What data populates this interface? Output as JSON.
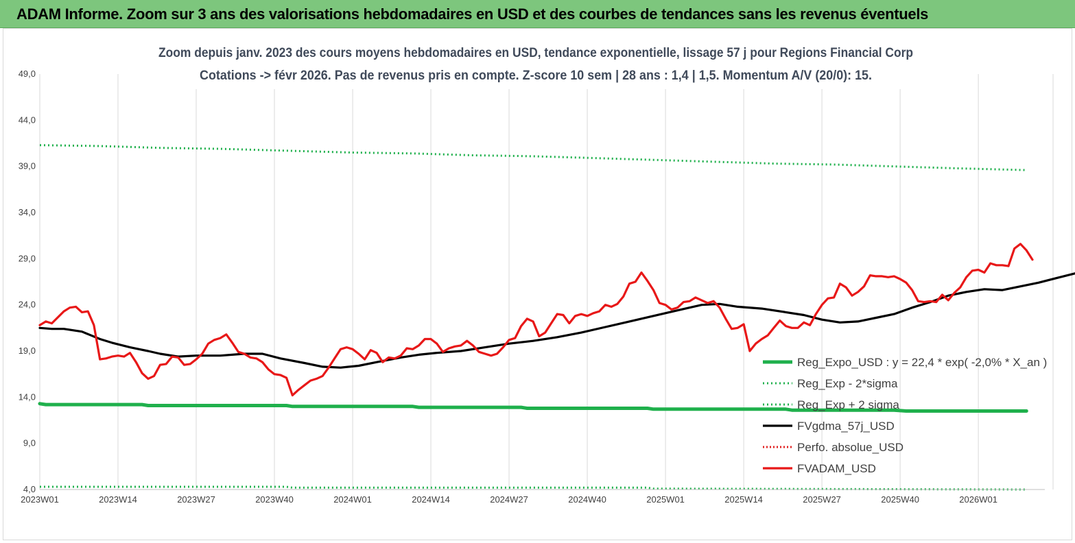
{
  "banner": {
    "title": "ADAM Informe. Zoom sur 3 ans des valorisations hebdomadaires en USD et des courbes de tendances sans les revenus éventuels"
  },
  "colors": {
    "banner_bg": "#7dc67d",
    "reg_expo": "#1fb04c",
    "band": "#1fb04c",
    "fvgdma": "#000000",
    "perfo": "#e02020",
    "fvadam": "#e81818"
  },
  "chart_data": {
    "type": "line",
    "title": "Zoom depuis janv. 2023 des cours moyens hebdomadaires en USD, tendance exponentielle, lissage 57 j pour Regions Financial Corp",
    "subtitle": "Cotations -> févr 2026.  Pas de revenus pris en compte. Z-score 10 sem  | 28 ans : 1,4  | 1,5. Momentum A/V (20/0): 15.",
    "xlabel": "",
    "ylabel": "",
    "ylim": [
      4,
      49
    ],
    "y_ticks": [
      "4,0",
      "9,0",
      "14,0",
      "19,0",
      "24,0",
      "29,0",
      "34,0",
      "39,0",
      "44,0",
      "49,0"
    ],
    "x_ticks": [
      "2023W01",
      "2023W14",
      "2023W27",
      "2023W40",
      "2024W01",
      "2024W14",
      "2024W27",
      "2024W40",
      "2025W01",
      "2025W14",
      "2025W27",
      "2025W40",
      "2026W01"
    ],
    "grid": "vertical",
    "legend_position": "bottom-right",
    "weeks_count": 165,
    "series": [
      {
        "name": "Reg_Expo_USD : y = 22,4 * exp( -2,0% *  X_an )",
        "style": "solid-thick",
        "points": [
          [
            0,
            13.3
          ],
          [
            1,
            13.2
          ],
          [
            17,
            13.2
          ],
          [
            18,
            13.1
          ],
          [
            41,
            13.1
          ],
          [
            42,
            13.0
          ],
          [
            62,
            13.0
          ],
          [
            63,
            12.9
          ],
          [
            80,
            12.9
          ],
          [
            81,
            12.8
          ],
          [
            101,
            12.8
          ],
          [
            102,
            12.7
          ],
          [
            124,
            12.7
          ],
          [
            125,
            12.6
          ],
          [
            142,
            12.6
          ],
          [
            144,
            12.5
          ],
          [
            164,
            12.5
          ]
        ]
      },
      {
        "name": "Reg_Exp - 2*sigma",
        "style": "dotted",
        "points": [
          [
            0,
            4.3
          ],
          [
            41,
            4.3
          ],
          [
            42,
            4.2
          ],
          [
            101,
            4.2
          ],
          [
            102,
            4.1
          ],
          [
            164,
            4.0
          ]
        ]
      },
      {
        "name": "Reg_Exp + 2 sigma",
        "style": "dotted",
        "points": [
          [
            0,
            41.3
          ],
          [
            10,
            41.2
          ],
          [
            20,
            41.0
          ],
          [
            30,
            40.9
          ],
          [
            41,
            40.7
          ],
          [
            52,
            40.5
          ],
          [
            62,
            40.4
          ],
          [
            72,
            40.2
          ],
          [
            82,
            40.1
          ],
          [
            92,
            39.9
          ],
          [
            102,
            39.7
          ],
          [
            112,
            39.5
          ],
          [
            122,
            39.3
          ],
          [
            132,
            39.2
          ],
          [
            142,
            39.0
          ],
          [
            152,
            38.8
          ],
          [
            164,
            38.6
          ]
        ]
      },
      {
        "name": "FVgdma_57j_USD",
        "style": "solid",
        "points": [
          [
            0,
            21.5
          ],
          [
            2,
            21.4
          ],
          [
            4,
            21.4
          ],
          [
            7,
            21.1
          ],
          [
            10,
            20.3
          ],
          [
            12,
            19.9
          ],
          [
            15,
            19.4
          ],
          [
            18,
            19.0
          ],
          [
            20,
            18.7
          ],
          [
            23,
            18.4
          ],
          [
            26,
            18.5
          ],
          [
            30,
            18.5
          ],
          [
            34,
            18.7
          ],
          [
            37,
            18.7
          ],
          [
            40,
            18.2
          ],
          [
            44,
            17.7
          ],
          [
            47,
            17.3
          ],
          [
            50,
            17.2
          ],
          [
            53,
            17.4
          ],
          [
            56,
            17.8
          ],
          [
            60,
            18.3
          ],
          [
            63,
            18.6
          ],
          [
            66,
            18.8
          ],
          [
            70,
            19.0
          ],
          [
            74,
            19.4
          ],
          [
            78,
            19.8
          ],
          [
            82,
            20.1
          ],
          [
            86,
            20.5
          ],
          [
            90,
            21.0
          ],
          [
            94,
            21.6
          ],
          [
            98,
            22.2
          ],
          [
            102,
            22.8
          ],
          [
            106,
            23.4
          ],
          [
            110,
            24.0
          ],
          [
            113,
            24.1
          ],
          [
            116,
            23.8
          ],
          [
            120,
            23.6
          ],
          [
            124,
            23.2
          ],
          [
            127,
            22.9
          ],
          [
            130,
            22.4
          ],
          [
            133,
            22.1
          ],
          [
            136,
            22.2
          ],
          [
            139,
            22.6
          ],
          [
            142,
            23.0
          ],
          [
            145,
            23.7
          ],
          [
            148,
            24.3
          ],
          [
            151,
            25.0
          ],
          [
            154,
            25.4
          ],
          [
            157,
            25.7
          ],
          [
            160,
            25.6
          ],
          [
            163,
            26.0
          ],
          [
            166,
            26.4
          ],
          [
            169,
            26.9
          ],
          [
            172,
            27.4
          ],
          [
            175,
            27.9
          ],
          [
            178,
            28.3
          ],
          [
            181,
            28.5
          ]
        ]
      },
      {
        "name": "Perfo. absolue_USD",
        "style": "dotted",
        "points": []
      },
      {
        "name": "FVADAM_USD",
        "style": "solid",
        "points": [
          [
            0,
            21.8
          ],
          [
            1,
            22.2
          ],
          [
            2,
            22.0
          ],
          [
            4,
            23.3
          ],
          [
            5,
            23.7
          ],
          [
            6,
            23.8
          ],
          [
            7,
            23.2
          ],
          [
            8,
            23.3
          ],
          [
            9,
            21.8
          ],
          [
            10,
            18.1
          ],
          [
            11,
            18.2
          ],
          [
            12,
            18.4
          ],
          [
            13,
            18.5
          ],
          [
            14,
            18.4
          ],
          [
            15,
            18.8
          ],
          [
            16,
            17.8
          ],
          [
            17,
            16.6
          ],
          [
            18,
            16.0
          ],
          [
            19,
            16.3
          ],
          [
            20,
            17.5
          ],
          [
            21,
            17.6
          ],
          [
            22,
            18.4
          ],
          [
            23,
            18.3
          ],
          [
            24,
            17.5
          ],
          [
            25,
            17.6
          ],
          [
            26,
            18.1
          ],
          [
            27,
            18.7
          ],
          [
            28,
            19.8
          ],
          [
            29,
            20.2
          ],
          [
            30,
            20.4
          ],
          [
            31,
            20.8
          ],
          [
            32,
            19.9
          ],
          [
            33,
            18.9
          ],
          [
            34,
            18.7
          ],
          [
            35,
            18.3
          ],
          [
            36,
            18.2
          ],
          [
            37,
            17.8
          ],
          [
            38,
            17.0
          ],
          [
            39,
            16.5
          ],
          [
            40,
            16.4
          ],
          [
            41,
            16.1
          ],
          [
            42,
            14.2
          ],
          [
            43,
            14.8
          ],
          [
            44,
            15.3
          ],
          [
            45,
            15.8
          ],
          [
            46,
            16.0
          ],
          [
            47,
            16.3
          ],
          [
            48,
            17.2
          ],
          [
            49,
            18.2
          ],
          [
            50,
            19.2
          ],
          [
            51,
            19.4
          ],
          [
            52,
            19.2
          ],
          [
            53,
            18.7
          ],
          [
            54,
            18.1
          ],
          [
            55,
            19.1
          ],
          [
            56,
            18.8
          ],
          [
            57,
            17.8
          ],
          [
            58,
            18.3
          ],
          [
            59,
            18.2
          ],
          [
            60,
            18.5
          ],
          [
            61,
            19.3
          ],
          [
            62,
            19.2
          ],
          [
            63,
            19.6
          ],
          [
            64,
            20.3
          ],
          [
            65,
            20.3
          ],
          [
            66,
            19.8
          ],
          [
            67,
            18.9
          ],
          [
            68,
            19.3
          ],
          [
            69,
            19.5
          ],
          [
            70,
            19.6
          ],
          [
            71,
            20.1
          ],
          [
            72,
            19.6
          ],
          [
            73,
            18.9
          ],
          [
            74,
            18.7
          ],
          [
            75,
            18.5
          ],
          [
            76,
            18.7
          ],
          [
            77,
            19.4
          ],
          [
            78,
            20.2
          ],
          [
            79,
            20.4
          ],
          [
            80,
            21.7
          ],
          [
            81,
            22.5
          ],
          [
            82,
            22.2
          ],
          [
            83,
            20.6
          ],
          [
            84,
            21.0
          ],
          [
            85,
            22.0
          ],
          [
            86,
            23.0
          ],
          [
            87,
            22.9
          ],
          [
            88,
            22.0
          ],
          [
            89,
            22.8
          ],
          [
            90,
            23.0
          ],
          [
            91,
            22.8
          ],
          [
            92,
            23.1
          ],
          [
            93,
            23.3
          ],
          [
            94,
            24.0
          ],
          [
            95,
            23.8
          ],
          [
            96,
            24.1
          ],
          [
            97,
            24.9
          ],
          [
            98,
            26.3
          ],
          [
            99,
            26.5
          ],
          [
            100,
            27.5
          ],
          [
            101,
            26.6
          ],
          [
            102,
            25.6
          ],
          [
            103,
            24.2
          ],
          [
            104,
            24.0
          ],
          [
            105,
            23.5
          ],
          [
            106,
            23.7
          ],
          [
            107,
            24.3
          ],
          [
            108,
            24.4
          ],
          [
            109,
            24.8
          ],
          [
            110,
            24.5
          ],
          [
            111,
            24.2
          ],
          [
            112,
            24.4
          ],
          [
            113,
            23.7
          ],
          [
            114,
            22.5
          ],
          [
            115,
            21.4
          ],
          [
            116,
            21.5
          ],
          [
            117,
            21.9
          ],
          [
            118,
            19.0
          ],
          [
            119,
            19.8
          ],
          [
            120,
            20.3
          ],
          [
            121,
            20.7
          ],
          [
            122,
            21.5
          ],
          [
            123,
            22.3
          ],
          [
            124,
            21.7
          ],
          [
            125,
            21.5
          ],
          [
            126,
            21.5
          ],
          [
            127,
            22.1
          ],
          [
            128,
            21.8
          ],
          [
            129,
            23.0
          ],
          [
            130,
            24.0
          ],
          [
            131,
            24.7
          ],
          [
            132,
            24.8
          ],
          [
            133,
            26.3
          ],
          [
            134,
            25.9
          ],
          [
            135,
            25.0
          ],
          [
            136,
            25.4
          ],
          [
            137,
            26.0
          ],
          [
            138,
            27.2
          ],
          [
            139,
            27.1
          ],
          [
            140,
            27.1
          ],
          [
            141,
            27.0
          ],
          [
            142,
            27.1
          ],
          [
            143,
            26.8
          ],
          [
            144,
            26.4
          ],
          [
            145,
            25.6
          ],
          [
            146,
            24.4
          ],
          [
            147,
            24.3
          ],
          [
            148,
            24.4
          ],
          [
            149,
            24.3
          ],
          [
            150,
            25.1
          ],
          [
            151,
            24.5
          ],
          [
            152,
            25.3
          ],
          [
            153,
            25.9
          ],
          [
            154,
            27.0
          ],
          [
            155,
            27.7
          ],
          [
            156,
            27.8
          ],
          [
            157,
            27.5
          ],
          [
            158,
            28.5
          ],
          [
            159,
            28.3
          ],
          [
            160,
            28.3
          ],
          [
            161,
            28.2
          ],
          [
            162,
            30.1
          ],
          [
            163,
            30.6
          ],
          [
            164,
            29.9
          ],
          [
            165,
            28.9
          ]
        ]
      }
    ]
  }
}
